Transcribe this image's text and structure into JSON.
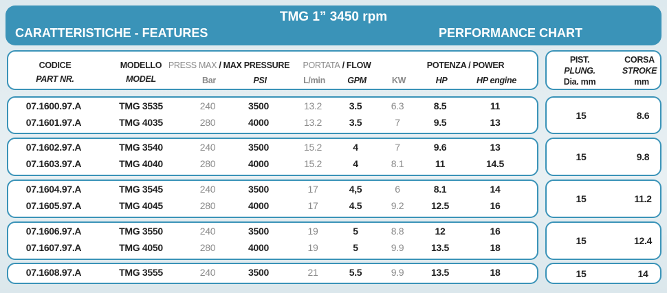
{
  "title": "TMG 1” 3450 rpm",
  "left_heading": "CARATTERISTICHE - FEATURES",
  "right_heading": "PERFORMANCE CHART",
  "headers": {
    "codice": "CODICE",
    "part_nr": "PART NR.",
    "modello": "MODELLO",
    "model": "MODEL",
    "press_max": "PRESS MAX",
    "max_pressure": "/ MAX PRESSURE",
    "bar": "Bar",
    "psi": "PSI",
    "portata": "PORTATA",
    "flow": "/ FLOW",
    "lmin": "L/min",
    "gpm": "GPM",
    "kw": "KW",
    "potenza": "POTENZA / POWER",
    "hp": "HP",
    "hp_engine": "HP engine",
    "pist": "PIST.",
    "plung": "PLUNG.",
    "dia": "Dia. mm",
    "corsa": "CORSA",
    "stroke": "STROKE",
    "mm": "mm"
  },
  "groups": [
    {
      "pist": "15",
      "corsa": "8.6",
      "rows": [
        [
          "07.1600.97.A",
          "TMG 3535",
          "240",
          "3500",
          "13.2",
          "3.5",
          "6.3",
          "8.5",
          "11"
        ],
        [
          "07.1601.97.A",
          "TMG 4035",
          "280",
          "4000",
          "13.2",
          "3.5",
          "7",
          "9.5",
          "13"
        ]
      ]
    },
    {
      "pist": "15",
      "corsa": "9.8",
      "rows": [
        [
          "07.1602.97.A",
          "TMG 3540",
          "240",
          "3500",
          "15.2",
          "4",
          "7",
          "9.6",
          "13"
        ],
        [
          "07.1603.97.A",
          "TMG 4040",
          "280",
          "4000",
          "15.2",
          "4",
          "8.1",
          "11",
          "14.5"
        ]
      ]
    },
    {
      "pist": "15",
      "corsa": "11.2",
      "rows": [
        [
          "07.1604.97.A",
          "TMG 3545",
          "240",
          "3500",
          "17",
          "4,5",
          "6",
          "8.1",
          "14"
        ],
        [
          "07.1605.97.A",
          "TMG 4045",
          "280",
          "4000",
          "17",
          "4.5",
          "9.2",
          "12.5",
          "16"
        ]
      ]
    },
    {
      "pist": "15",
      "corsa": "12.4",
      "rows": [
        [
          "07.1606.97.A",
          "TMG 3550",
          "240",
          "3500",
          "19",
          "5",
          "8.8",
          "12",
          "16"
        ],
        [
          "07.1607.97.A",
          "TMG 4050",
          "280",
          "4000",
          "19",
          "5",
          "9.9",
          "13.5",
          "18"
        ]
      ]
    },
    {
      "pist": "15",
      "corsa": "14",
      "rows": [
        [
          "07.1608.97.A",
          "TMG 3555",
          "240",
          "3500",
          "21",
          "5.5",
          "9.9",
          "13.5",
          "18"
        ]
      ]
    }
  ]
}
